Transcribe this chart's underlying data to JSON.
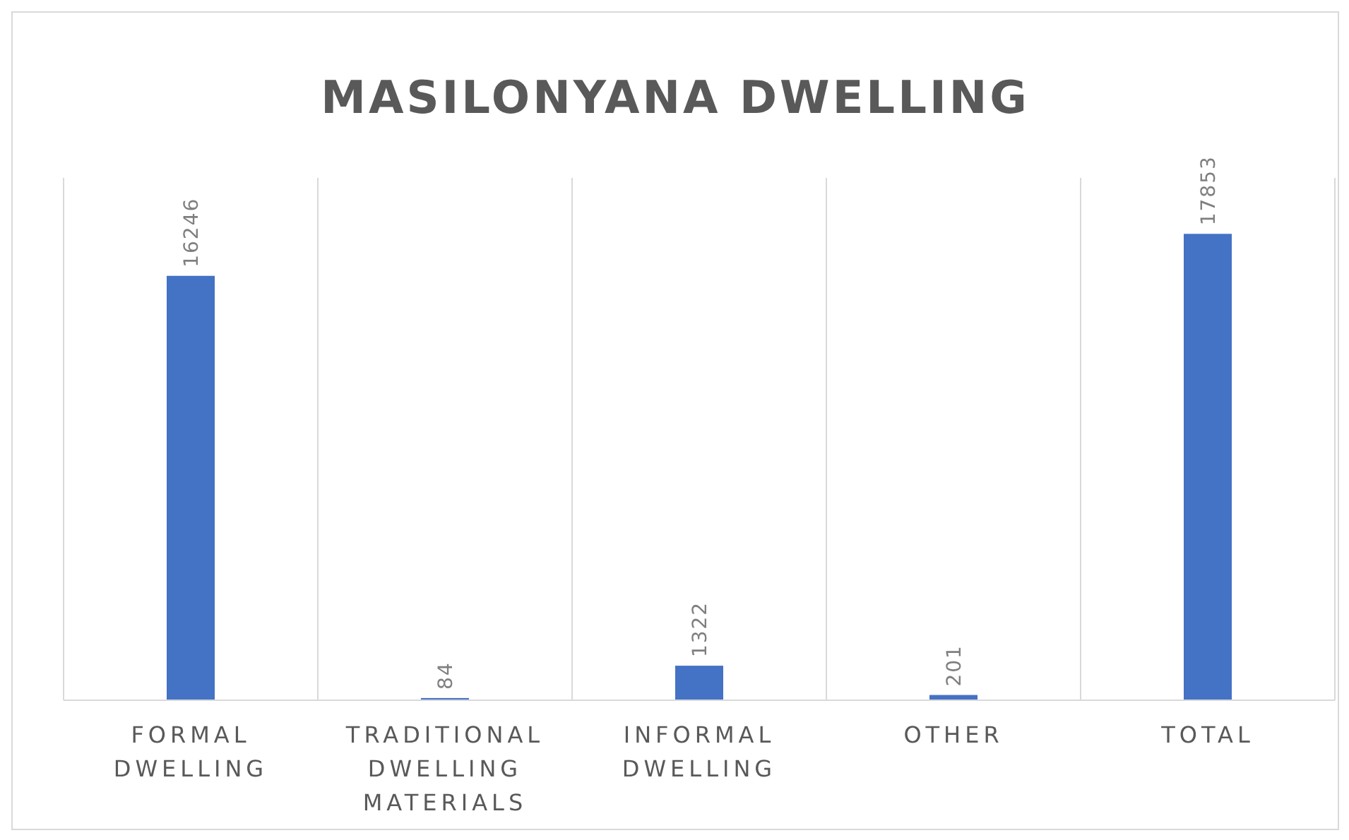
{
  "chart_data": {
    "type": "bar",
    "title": "MASILONYANA DWELLING",
    "categories": [
      "FORMAL DWELLING",
      "TRADITIONAL DWELLING MATERIALS",
      "INFORMAL DWELLING",
      "OTHER",
      "TOTAL"
    ],
    "values": [
      16246,
      84,
      1322,
      201,
      17853
    ],
    "color": "#4472c4",
    "data_labels": true,
    "grid": "x"
  }
}
